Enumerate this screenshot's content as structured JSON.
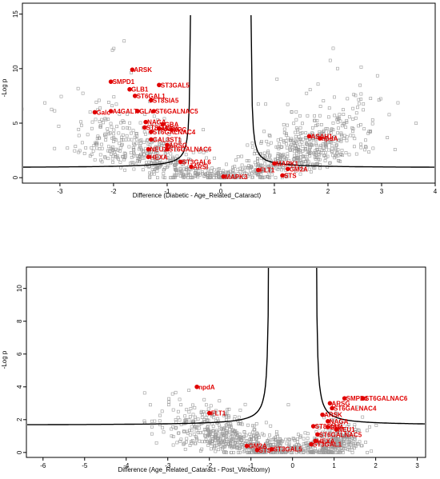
{
  "chart_data": [
    {
      "type": "scatter",
      "title": "",
      "xlabel": "Difference (Diabetic - Age_Related_Cataract)",
      "ylabel": "-Log p",
      "xlim": [
        -3.7,
        4.0
      ],
      "ylim": [
        -0.5,
        16
      ],
      "xticks": [
        "-3",
        "-2",
        "-1",
        "0",
        "1",
        "2",
        "3",
        "4"
      ],
      "yticks": [
        "0",
        "5",
        "10",
        "15"
      ],
      "background_color": "#9a9a9a",
      "highlight_color": "#e00000",
      "grid": false,
      "legend": "none",
      "highlighted": [
        {
          "label": "ARSK",
          "x": -1.65,
          "y": 9.9
        },
        {
          "label": "SMPD1",
          "x": -2.05,
          "y": 8.8
        },
        {
          "label": "ST3GAL5",
          "x": -1.15,
          "y": 8.5
        },
        {
          "label": "GLB1",
          "x": -1.7,
          "y": 8.1
        },
        {
          "label": "ST6GAL1",
          "x": -1.6,
          "y": 7.5
        },
        {
          "label": "ST8SIA5",
          "x": -1.3,
          "y": 7.1
        },
        {
          "label": "A4GALT",
          "x": -2.05,
          "y": 6.1
        },
        {
          "label": "GLA",
          "x": -1.55,
          "y": 6.1
        },
        {
          "label": "ST6GALNAC5",
          "x": -1.25,
          "y": 6.1
        },
        {
          "label": "Galc",
          "x": -2.35,
          "y": 6.0
        },
        {
          "label": "NAGA",
          "x": -1.4,
          "y": 5.1
        },
        {
          "label": "GBA",
          "x": -1.08,
          "y": 4.9
        },
        {
          "label": "ST8SIA1",
          "x": -1.42,
          "y": 4.6
        },
        {
          "label": "ARSA",
          "x": -1.15,
          "y": 4.5
        },
        {
          "label": "NPC",
          "x": -0.92,
          "y": 4.4
        },
        {
          "label": "ST6GALNAC4",
          "x": -1.3,
          "y": 4.2
        },
        {
          "label": "GAL3ST1",
          "x": -1.3,
          "y": 3.5
        },
        {
          "label": "ARSG",
          "x": -1.0,
          "y": 3.0
        },
        {
          "label": "NEU3",
          "x": -1.35,
          "y": 2.6
        },
        {
          "label": "ST6GALNAC6",
          "x": -1.0,
          "y": 2.6
        },
        {
          "label": "HEXA",
          "x": -1.35,
          "y": 1.9
        },
        {
          "label": "ST3GAL6",
          "x": -0.75,
          "y": 1.45
        },
        {
          "label": "ARSI",
          "x": -0.55,
          "y": 1.0
        },
        {
          "label": "MAPK3",
          "x": 0.05,
          "y": 0.1
        },
        {
          "label": "MAPK1",
          "x": 1.0,
          "y": 1.3
        },
        {
          "label": "FLT1",
          "x": 0.7,
          "y": 0.7
        },
        {
          "label": "GM2A",
          "x": 1.25,
          "y": 0.8
        },
        {
          "label": "STS",
          "x": 1.15,
          "y": 0.2
        },
        {
          "label": "ASAH1",
          "x": 1.65,
          "y": 3.8
        },
        {
          "label": "npdA",
          "x": 1.85,
          "y": 3.6
        }
      ]
    },
    {
      "type": "scatter",
      "title": "",
      "xlabel": "Difference (Age_Related_Cataract - Post_Vitrectomy)",
      "ylabel": "-Log p",
      "xlim": [
        -6.4,
        3.2
      ],
      "ylim": [
        -0.3,
        11.3
      ],
      "xticks": [
        "-6",
        "-5",
        "-4",
        "-3",
        "-2",
        "-1",
        "0",
        "1",
        "2",
        "3"
      ],
      "yticks": [
        "0",
        "2",
        "4",
        "6",
        "8",
        "10"
      ],
      "background_color": "#9a9a9a",
      "highlight_color": "#e00000",
      "grid": false,
      "legend": "none",
      "highlighted": [
        {
          "label": "SMPD1",
          "x": 1.25,
          "y": 3.3
        },
        {
          "label": "ST6GALNAC6",
          "x": 1.7,
          "y": 3.3
        },
        {
          "label": "ARSG",
          "x": 0.9,
          "y": 3.0
        },
        {
          "label": "ST6GALNAC4",
          "x": 0.95,
          "y": 2.7
        },
        {
          "label": "ARSK",
          "x": 0.72,
          "y": 2.3
        },
        {
          "label": "NAGA",
          "x": 0.85,
          "y": 1.9
        },
        {
          "label": "ST8SIA1",
          "x": 0.5,
          "y": 1.6
        },
        {
          "label": "GBA",
          "x": 0.85,
          "y": 1.55
        },
        {
          "label": "NEU1",
          "x": 1.05,
          "y": 1.4
        },
        {
          "label": "ST6GALNAC5",
          "x": 0.6,
          "y": 1.1
        },
        {
          "label": "HEXA",
          "x": 0.55,
          "y": 0.7
        },
        {
          "label": "ST3GAL1",
          "x": 0.45,
          "y": 0.5
        },
        {
          "label": "GM2A",
          "x": -1.1,
          "y": 0.4
        },
        {
          "label": "STS",
          "x": -0.85,
          "y": 0.15
        },
        {
          "label": "ST3GAL5",
          "x": -0.5,
          "y": 0.2
        },
        {
          "label": "FLT1",
          "x": -2.0,
          "y": 2.4
        },
        {
          "label": "npdA",
          "x": -2.3,
          "y": 4.0
        }
      ]
    }
  ]
}
